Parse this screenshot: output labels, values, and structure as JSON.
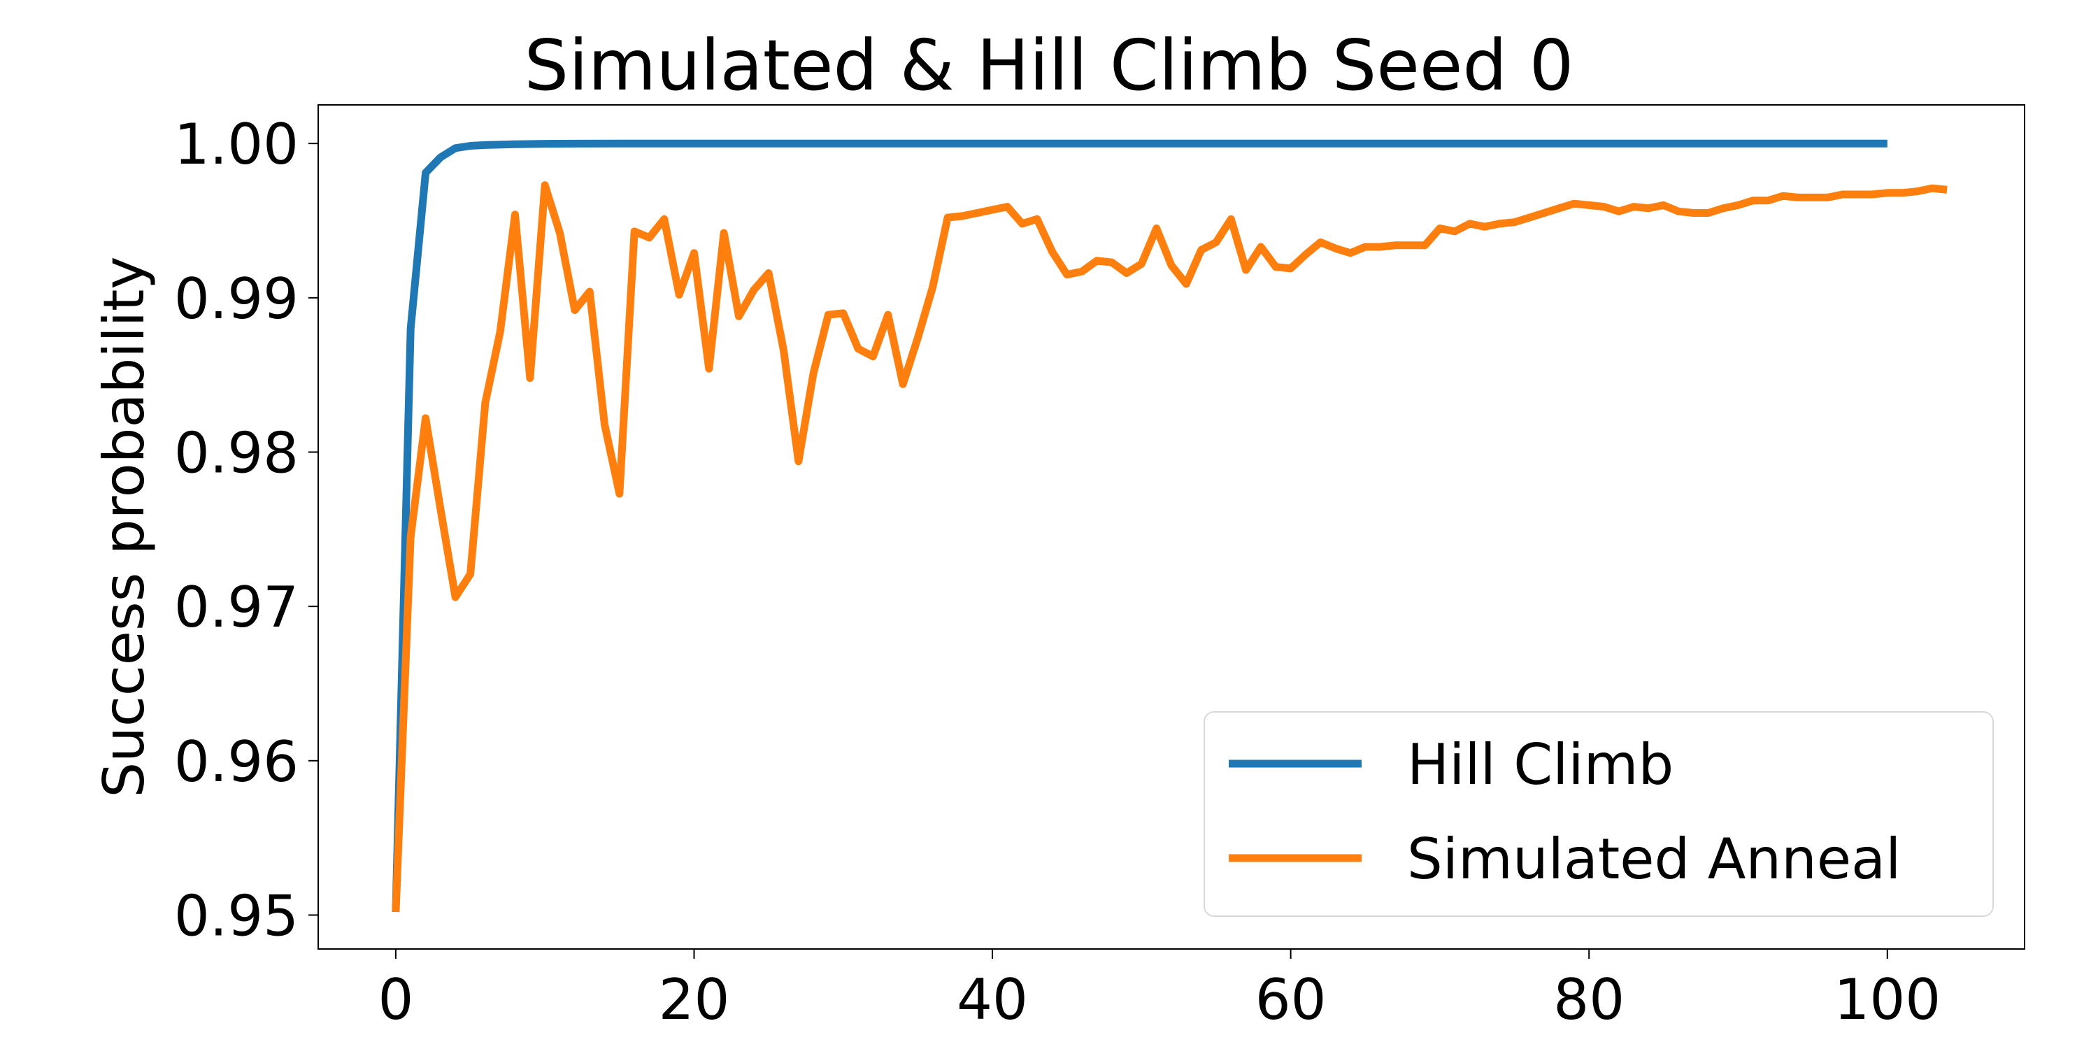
{
  "chart_data": {
    "type": "line",
    "title": "Simulated & Hill Climb Seed 0",
    "xlabel": "",
    "ylabel": "Success probability",
    "xlim": [
      -5.2,
      109.2
    ],
    "ylim": [
      0.9478,
      1.0025
    ],
    "xticks": [
      0,
      20,
      40,
      60,
      80,
      100
    ],
    "yticks": [
      0.95,
      0.96,
      0.97,
      0.98,
      0.99,
      1.0
    ],
    "ytick_labels": [
      "0.95",
      "0.96",
      "0.97",
      "0.98",
      "0.99",
      "1.00"
    ],
    "grid": false,
    "legend_position": "lower right",
    "series": [
      {
        "name": "Hill Climb",
        "color": "#1f77b4",
        "x": [
          0,
          1,
          2,
          3,
          4,
          5,
          6,
          8,
          10,
          12,
          15,
          18,
          20,
          25,
          30,
          40,
          50,
          60,
          70,
          80,
          90,
          100
        ],
        "y": [
          0.9502,
          0.988,
          0.9981,
          0.9991,
          0.9997,
          0.99985,
          0.9999,
          0.99995,
          0.99998,
          0.99999,
          1.0,
          1.0,
          1.0,
          1.0,
          1.0,
          1.0,
          1.0,
          1.0,
          1.0,
          1.0,
          1.0,
          1.0
        ]
      },
      {
        "name": "Simulated Anneal",
        "color": "#ff7f0e",
        "x": [
          0,
          1,
          2,
          3,
          4,
          5,
          6,
          7,
          8,
          9,
          10,
          11,
          12,
          13,
          14,
          15,
          16,
          17,
          18,
          19,
          20,
          21,
          22,
          23,
          24,
          25,
          26,
          27,
          28,
          29,
          30,
          31,
          32,
          33,
          34,
          35,
          36,
          37,
          38,
          39,
          40,
          41,
          42,
          43,
          44,
          45,
          46,
          47,
          48,
          49,
          50,
          51,
          52,
          53,
          54,
          55,
          56,
          57,
          58,
          59,
          60,
          61,
          62,
          63,
          64,
          65,
          66,
          67,
          68,
          69,
          70,
          71,
          72,
          73,
          74,
          75,
          76,
          77,
          78,
          79,
          80,
          81,
          82,
          83,
          84,
          85,
          86,
          87,
          88,
          89,
          90,
          91,
          92,
          93,
          94,
          95,
          96,
          97,
          98,
          99,
          100,
          101,
          102,
          103,
          104
        ],
        "y": [
          0.9502,
          0.9745,
          0.9822,
          0.9763,
          0.9706,
          0.9721,
          0.9832,
          0.9878,
          0.9954,
          0.9848,
          0.9973,
          0.9942,
          0.9892,
          0.9904,
          0.9818,
          0.9773,
          0.9943,
          0.9939,
          0.9951,
          0.9902,
          0.9929,
          0.9854,
          0.9942,
          0.9888,
          0.9905,
          0.9916,
          0.9866,
          0.9794,
          0.9851,
          0.9889,
          0.989,
          0.9867,
          0.9862,
          0.9889,
          0.9844,
          0.9874,
          0.9907,
          0.9952,
          0.9953,
          0.9955,
          0.9957,
          0.9959,
          0.9948,
          0.9951,
          0.993,
          0.9915,
          0.9917,
          0.9924,
          0.9923,
          0.9916,
          0.9922,
          0.9945,
          0.9921,
          0.9909,
          0.9931,
          0.9936,
          0.9951,
          0.9918,
          0.9933,
          0.992,
          0.9919,
          0.9928,
          0.9936,
          0.9932,
          0.9929,
          0.9933,
          0.9933,
          0.9934,
          0.9934,
          0.9934,
          0.9945,
          0.9943,
          0.9948,
          0.9946,
          0.9948,
          0.9949,
          0.9952,
          0.9955,
          0.9958,
          0.9961,
          0.996,
          0.9959,
          0.9956,
          0.9959,
          0.9958,
          0.996,
          0.9956,
          0.9955,
          0.9955,
          0.9958,
          0.996,
          0.9963,
          0.9963,
          0.9966,
          0.9965,
          0.9965,
          0.9965,
          0.9967,
          0.9967,
          0.9967,
          0.9968,
          0.9968,
          0.9969,
          0.9971,
          0.997
        ]
      }
    ]
  }
}
